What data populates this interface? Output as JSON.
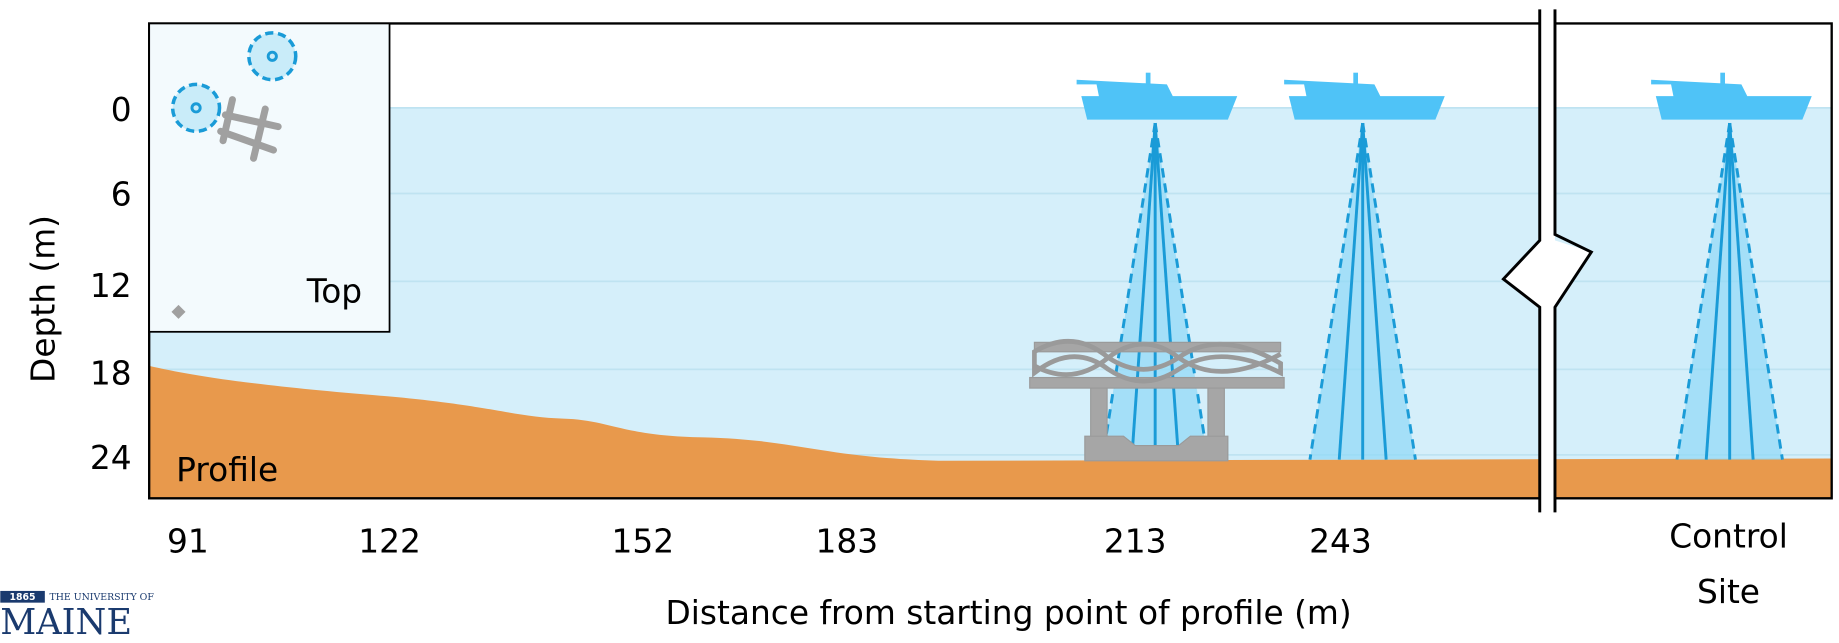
{
  "y_axis": {
    "label": "Depth (m)",
    "ticks": [
      0,
      6,
      12,
      18,
      24
    ]
  },
  "x_axis": {
    "label": "Distance from starting point of profile (m)",
    "ticks": [
      91,
      122,
      152,
      183,
      213,
      243
    ],
    "control_site": [
      "Control",
      "Site"
    ]
  },
  "inset_label": "Top",
  "profile_label": "Profile",
  "logo": {
    "year": "1865",
    "line1": "THE UNIVERSITY OF",
    "line2": "MAINE"
  }
}
